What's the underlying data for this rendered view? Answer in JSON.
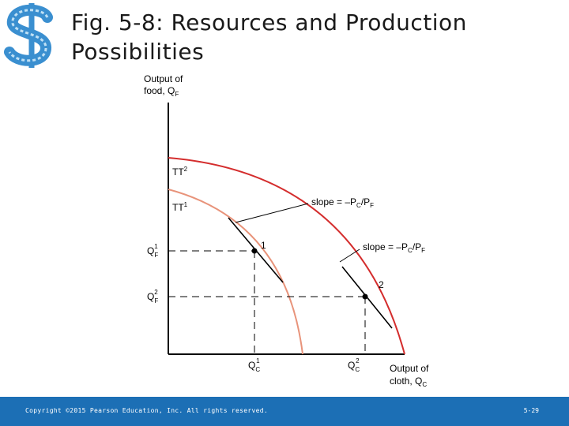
{
  "slide": {
    "title_line1": "Fig. 5-8: Resources and Production",
    "title_line2": "Possibilities"
  },
  "logo": {
    "icon": "dollar-sign-logo",
    "color": "#3a8fd0"
  },
  "diagram": {
    "y_axis_label_line1": "Output of",
    "y_axis_label_line2": "food, Q",
    "y_axis_label_sub": "F",
    "x_axis_label_line1": "Output of",
    "x_axis_label_line2": "cloth, Q",
    "x_axis_label_sub": "C",
    "curve_outer": "TT",
    "curve_outer_sup": "2",
    "curve_inner": "TT",
    "curve_inner_sup": "1",
    "slope_label_upper": "slope = –P",
    "slope_label_lower": "slope = –P",
    "slope_sub_c": "C",
    "slope_mid": "/P",
    "slope_sub_f": "F",
    "point_1": "1",
    "point_2": "2",
    "qf1_main": "Q",
    "qf1_sub": "F",
    "qf1_sup": "1",
    "qf2_main": "Q",
    "qf2_sub": "F",
    "qf2_sup": "2",
    "qc1_main": "Q",
    "qc1_sub": "C",
    "qc1_sup": "1",
    "qc2_main": "Q",
    "qc2_sub": "C",
    "qc2_sup": "2",
    "colors": {
      "outer_curve": "#d42d2d",
      "inner_curve": "#e8937a",
      "axes": "#000000"
    }
  },
  "footer": {
    "copyright": "Copyright ©2015 Pearson Education, Inc. All rights reserved.",
    "slide_number": "5-29",
    "background": "#1c6fb5"
  }
}
